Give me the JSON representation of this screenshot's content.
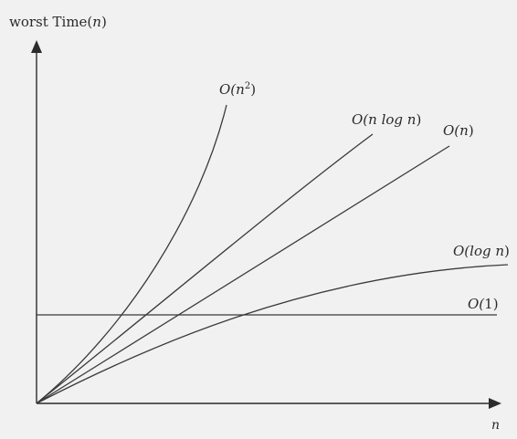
{
  "diagram": {
    "y_axis_label": {
      "prefix": "worst Time(",
      "var": "n",
      "suffix": ")"
    },
    "x_axis_label": "n",
    "curves": [
      {
        "id": "n2",
        "prefix": "O(",
        "var": "n",
        "sup": "2",
        "suffix": ")"
      },
      {
        "id": "nlogn",
        "prefix": "O(",
        "var": "n log n",
        "suffix": ")"
      },
      {
        "id": "n",
        "prefix": "O(",
        "var": "n",
        "suffix": ")"
      },
      {
        "id": "logn",
        "prefix": "O(",
        "var": "log n",
        "suffix": ")"
      },
      {
        "id": "1",
        "prefix": "O(",
        "var": "",
        "num": "1",
        "suffix": ")"
      }
    ],
    "colors": {
      "background": "#f1f1f1",
      "stroke": "#3a3a3a"
    }
  }
}
